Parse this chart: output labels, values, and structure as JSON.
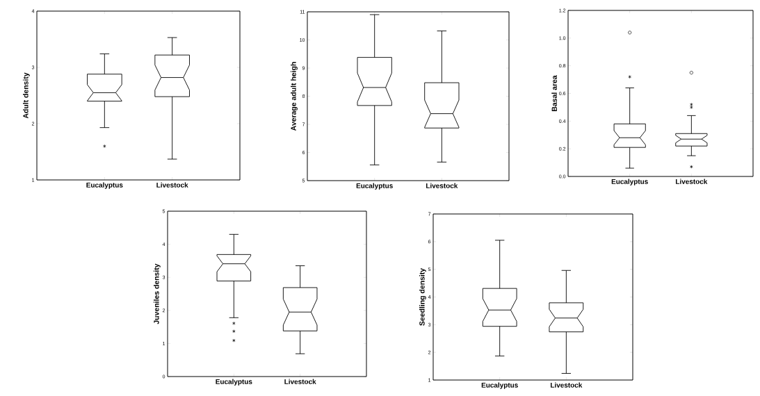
{
  "chart_data": [
    {
      "type": "box",
      "ylabel": "Adult density",
      "categories": [
        "Eucalyptus",
        "Livestock"
      ],
      "ylim": [
        1,
        4
      ],
      "yticks": [
        1,
        2,
        3,
        4
      ],
      "boxes": [
        {
          "low": 1.93,
          "q1": 2.4,
          "median": 2.55,
          "q3": 2.88,
          "high": 3.24,
          "outliers": [
            1.6
          ]
        },
        {
          "low": 1.37,
          "q1": 2.48,
          "median": 2.82,
          "q3": 3.22,
          "high": 3.53
        }
      ]
    },
    {
      "type": "box",
      "ylabel": "Average adult heigh",
      "categories": [
        "Eucalyptus",
        "Livestock"
      ],
      "ylim": [
        5,
        11
      ],
      "yticks": [
        5,
        6,
        7,
        8,
        9,
        10,
        11
      ],
      "boxes": [
        {
          "low": 5.56,
          "q1": 7.67,
          "median": 8.31,
          "q3": 9.38,
          "high": 10.9
        },
        {
          "low": 5.66,
          "q1": 6.87,
          "median": 7.38,
          "q3": 8.48,
          "high": 10.32
        }
      ]
    },
    {
      "type": "box",
      "ylabel": "Basal area",
      "categories": [
        "Eucalyptus",
        "Livestock"
      ],
      "ylim": [
        0,
        1.2
      ],
      "yticks": [
        {
          "value": 0,
          "label": "0.0"
        },
        0.2,
        0.4,
        0.6,
        0.8,
        {
          "value": 1,
          "label": "1.0"
        },
        1.2
      ],
      "boxes": [
        {
          "low": 0.06,
          "q1": 0.21,
          "median": 0.28,
          "q3": 0.38,
          "high": 0.64,
          "outliers": [
            0.72,
            1.04
          ]
        },
        {
          "low": 0.15,
          "q1": 0.22,
          "median": 0.27,
          "q3": 0.31,
          "high": 0.44,
          "outliers": [
            0.07,
            0.5,
            0.52,
            0.75
          ]
        }
      ]
    },
    {
      "type": "box",
      "ylabel": "Juveniles density",
      "categories": [
        "Eucalyptus",
        "Livestock"
      ],
      "ylim": [
        0,
        5
      ],
      "yticks": [
        0,
        1,
        2,
        3,
        4,
        5
      ],
      "boxes": [
        {
          "low": 1.78,
          "q1": 2.89,
          "median": 3.41,
          "q3": 3.69,
          "high": 4.3,
          "outliers": [
            1.09,
            1.37,
            1.61
          ]
        },
        {
          "low": 0.69,
          "q1": 1.38,
          "median": 1.95,
          "q3": 2.69,
          "high": 3.35
        }
      ]
    },
    {
      "type": "box",
      "ylabel": "Seedling density",
      "categories": [
        "Eucalyptus",
        "Livestock"
      ],
      "ylim": [
        1,
        7
      ],
      "yticks": [
        1,
        2,
        3,
        4,
        5,
        6,
        7
      ],
      "boxes": [
        {
          "low": 1.87,
          "q1": 2.94,
          "median": 3.53,
          "q3": 4.31,
          "high": 6.05
        },
        {
          "low": 1.24,
          "q1": 2.74,
          "median": 3.24,
          "q3": 3.79,
          "high": 4.96
        }
      ]
    }
  ]
}
